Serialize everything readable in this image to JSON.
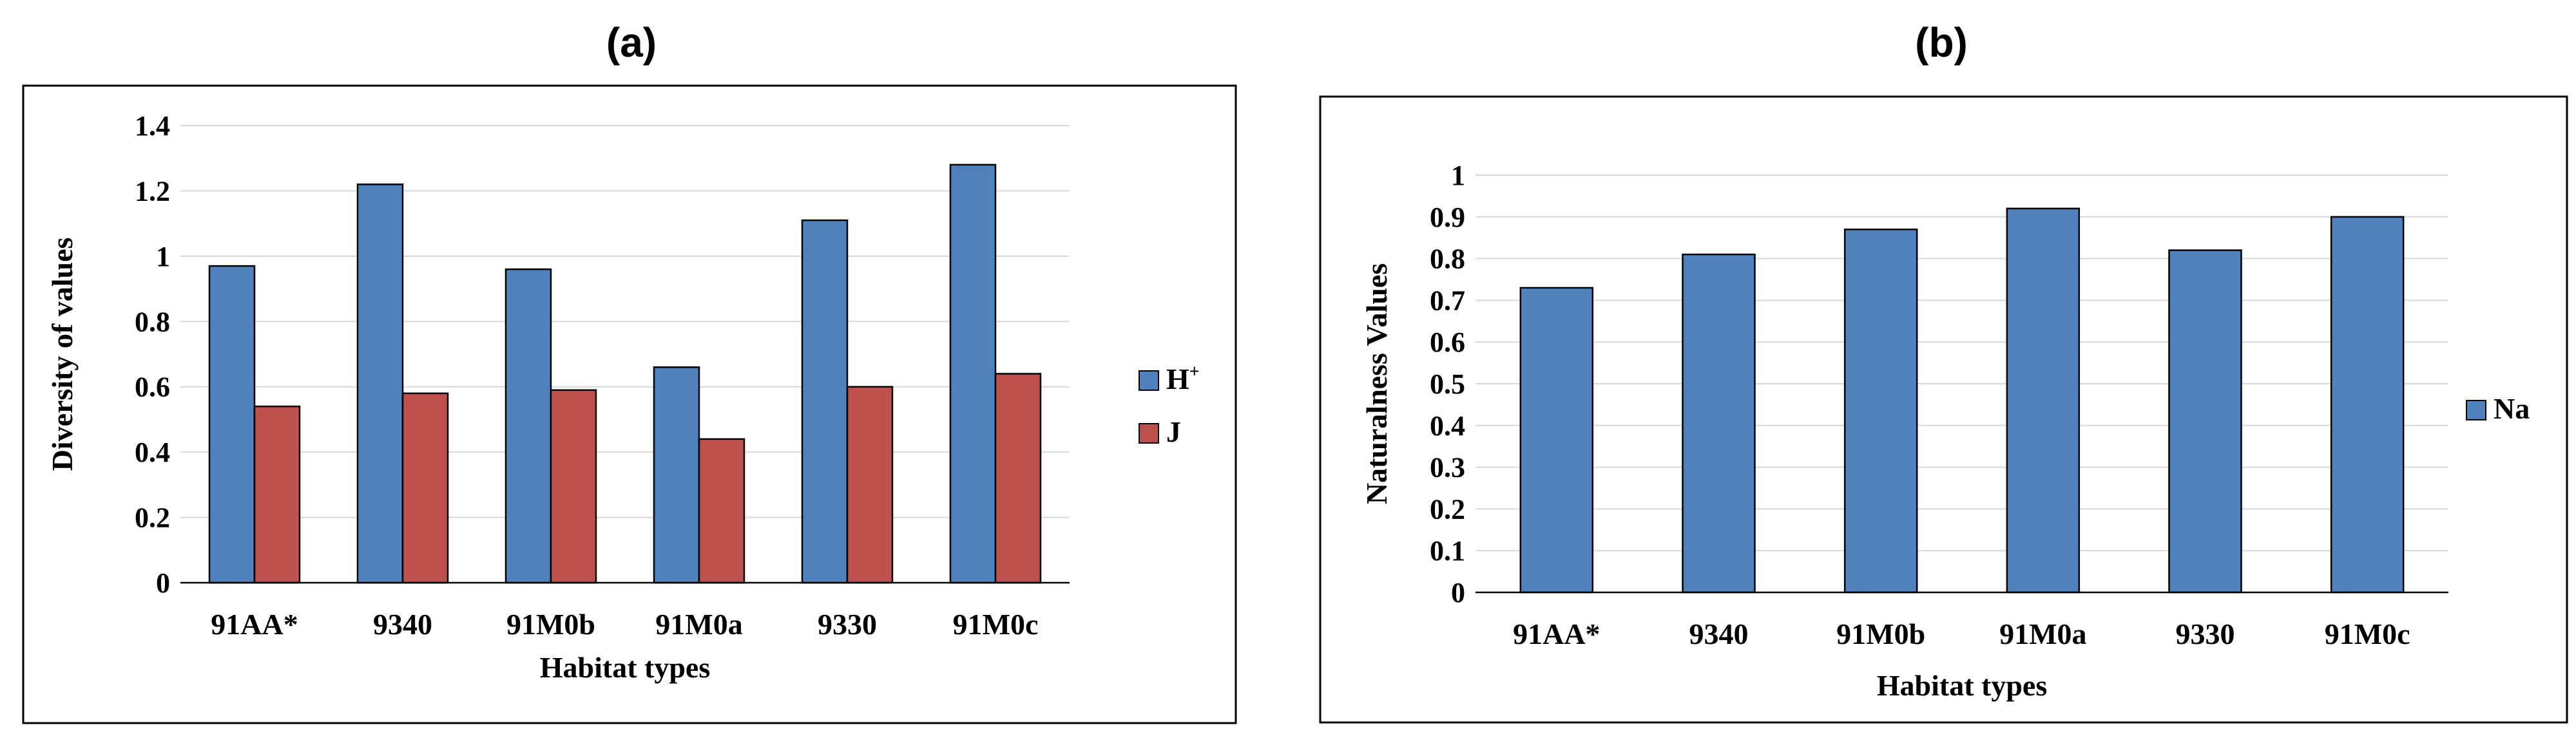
{
  "colors": {
    "H": "#4f81bd",
    "J": "#c0504d",
    "Na": "#4f81bd"
  },
  "chart_data": [
    {
      "panel": "(a)",
      "type": "bar",
      "categories": [
        "91AA*",
        "9340",
        "91M0b",
        "91M0a",
        "9330",
        "91M0c"
      ],
      "series": [
        {
          "name": "H",
          "values": [
            0.97,
            1.22,
            0.96,
            0.66,
            1.11,
            1.28
          ]
        },
        {
          "name": "J",
          "values": [
            0.54,
            0.58,
            0.59,
            0.44,
            0.6,
            0.64
          ]
        }
      ],
      "legend_superscript": [
        "+",
        ""
      ],
      "xlabel": "Habitat types",
      "ylabel": "Diversity of values",
      "ylim": [
        0,
        1.4
      ],
      "yticks": [
        "0",
        "0.2",
        "0.4",
        "0.6",
        "0.8",
        "1",
        "1.2",
        "1.4"
      ],
      "grid": true,
      "legend": "right"
    },
    {
      "panel": "(b)",
      "type": "bar",
      "categories": [
        "91AA*",
        "9340",
        "91M0b",
        "91M0a",
        "9330",
        "91M0c"
      ],
      "series": [
        {
          "name": "Na",
          "values": [
            0.73,
            0.81,
            0.87,
            0.92,
            0.82,
            0.9
          ]
        }
      ],
      "legend_superscript": [
        ""
      ],
      "xlabel": "Habitat types",
      "ylabel": "Naturalness Values",
      "ylim": [
        0,
        1
      ],
      "yticks": [
        "0",
        "0.1",
        "0.2",
        "0.3",
        "0.4",
        "0.5",
        "0.6",
        "0.7",
        "0.8",
        "0.9",
        "1"
      ],
      "grid": true,
      "legend": "right"
    }
  ]
}
